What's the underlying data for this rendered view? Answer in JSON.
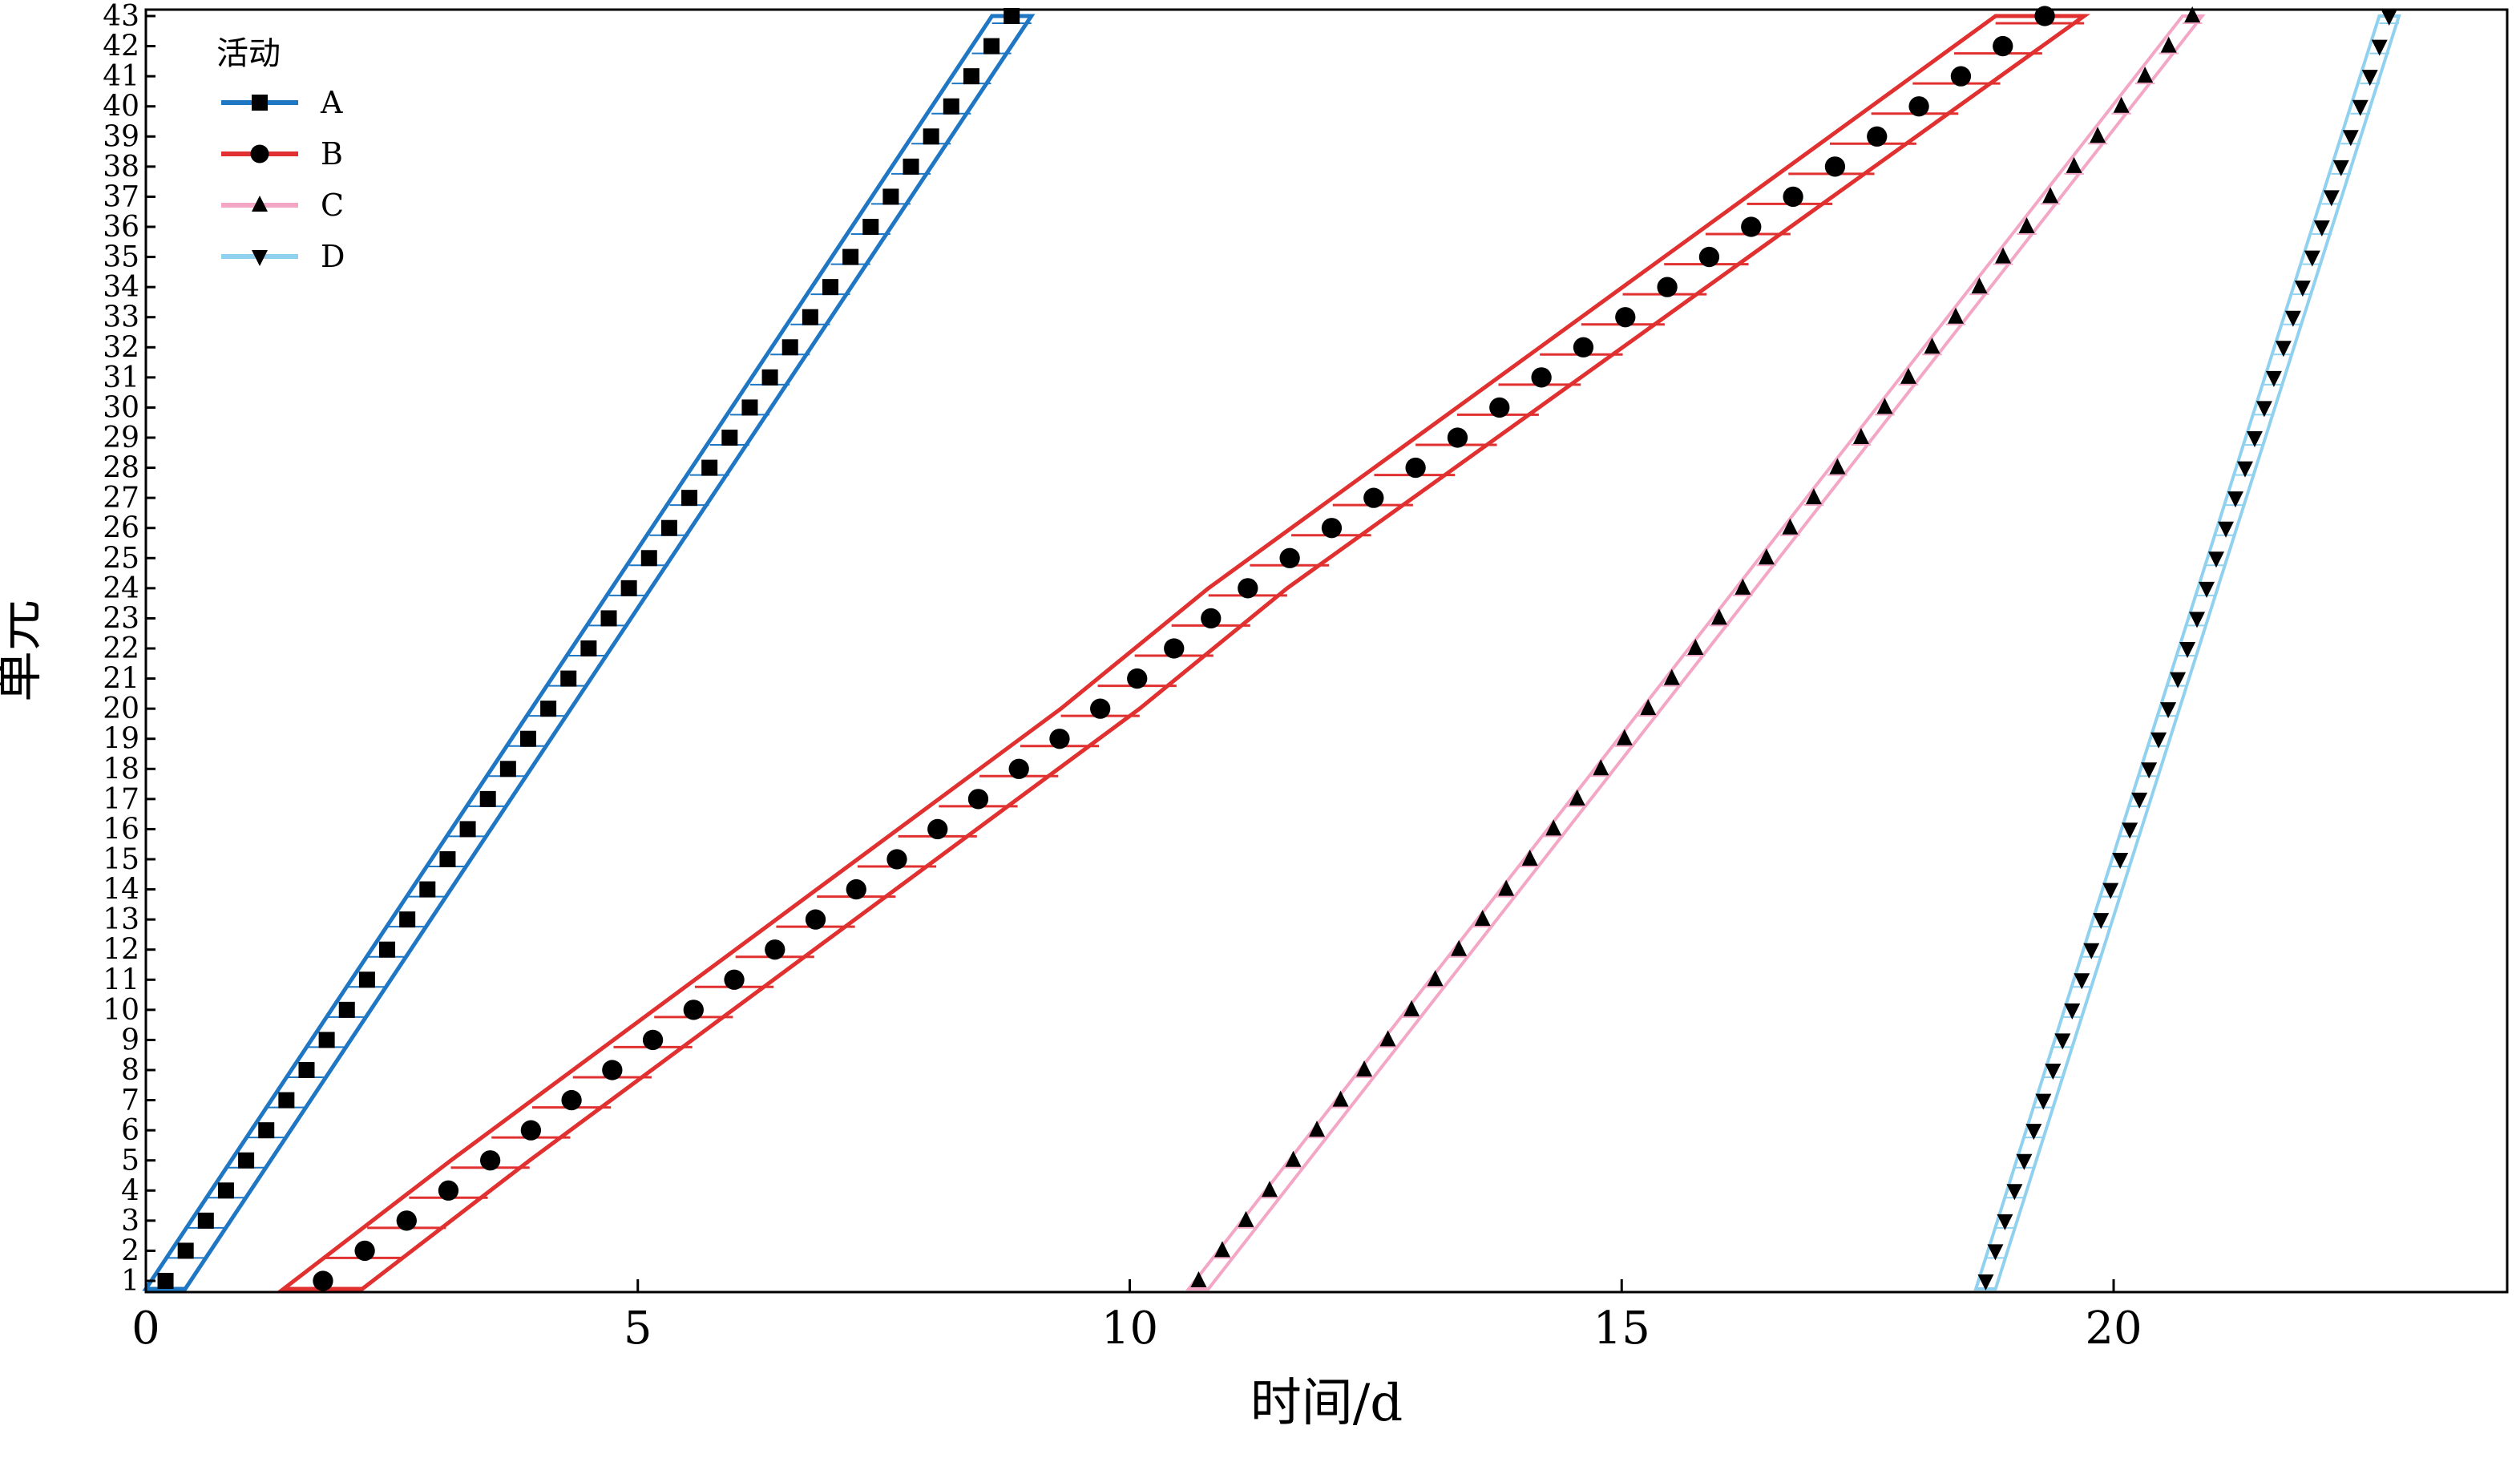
{
  "chart_data": {
    "type": "line",
    "chart_kind": "line-of-balance schedule",
    "xlabel": "时间/d",
    "ylabel": "单元",
    "xlim": [
      0,
      24
    ],
    "ylim": [
      1,
      43
    ],
    "x_ticks": [
      0,
      5,
      10,
      15,
      20
    ],
    "y_ticks": [
      1,
      2,
      3,
      4,
      5,
      6,
      7,
      8,
      9,
      10,
      11,
      12,
      13,
      14,
      15,
      16,
      17,
      18,
      19,
      20,
      21,
      22,
      23,
      24,
      25,
      26,
      27,
      28,
      29,
      30,
      31,
      32,
      33,
      34,
      35,
      36,
      37,
      38,
      39,
      40,
      41,
      42,
      43
    ],
    "grid": false,
    "legend": {
      "title": "活动",
      "placement": "top-left"
    },
    "series": [
      {
        "name": "A",
        "color": "#1f77c4",
        "marker": "square",
        "start_t": 0.2,
        "end_t": 8.8,
        "band_left_start": 0.0,
        "band_left_end": 8.6,
        "band_right_start": 0.4,
        "band_right_end": 9.0
      },
      {
        "name": "B",
        "color": "#e03030",
        "marker": "circle",
        "breakpoints": [
          {
            "unit": 1,
            "t": 1.8
          },
          {
            "unit": 5,
            "t": 3.5
          },
          {
            "unit": 20,
            "t": 9.7
          },
          {
            "unit": 24,
            "t": 11.2
          },
          {
            "unit": 43,
            "t": 19.3
          }
        ],
        "band_left": [
          [
            1,
            1.4
          ],
          [
            5,
            3.1
          ],
          [
            20,
            9.3
          ],
          [
            24,
            10.8
          ],
          [
            43,
            18.8
          ]
        ],
        "band_right": [
          [
            1,
            2.2
          ],
          [
            5,
            3.9
          ],
          [
            20,
            10.1
          ],
          [
            24,
            11.6
          ],
          [
            43,
            19.7
          ]
        ]
      },
      {
        "name": "C",
        "color": "#f4a6c6",
        "marker": "triangle-up",
        "start_t": 10.7,
        "end_t": 20.8,
        "band_left_start": 10.6,
        "band_left_end": 20.7,
        "band_right_start": 10.8,
        "band_right_end": 20.9
      },
      {
        "name": "D",
        "color": "#8fd1ee",
        "marker": "triangle-down",
        "start_t": 18.7,
        "end_t": 22.8,
        "band_left_start": 18.6,
        "band_left_end": 22.7,
        "band_right_start": 18.8,
        "band_right_end": 22.9
      }
    ]
  }
}
